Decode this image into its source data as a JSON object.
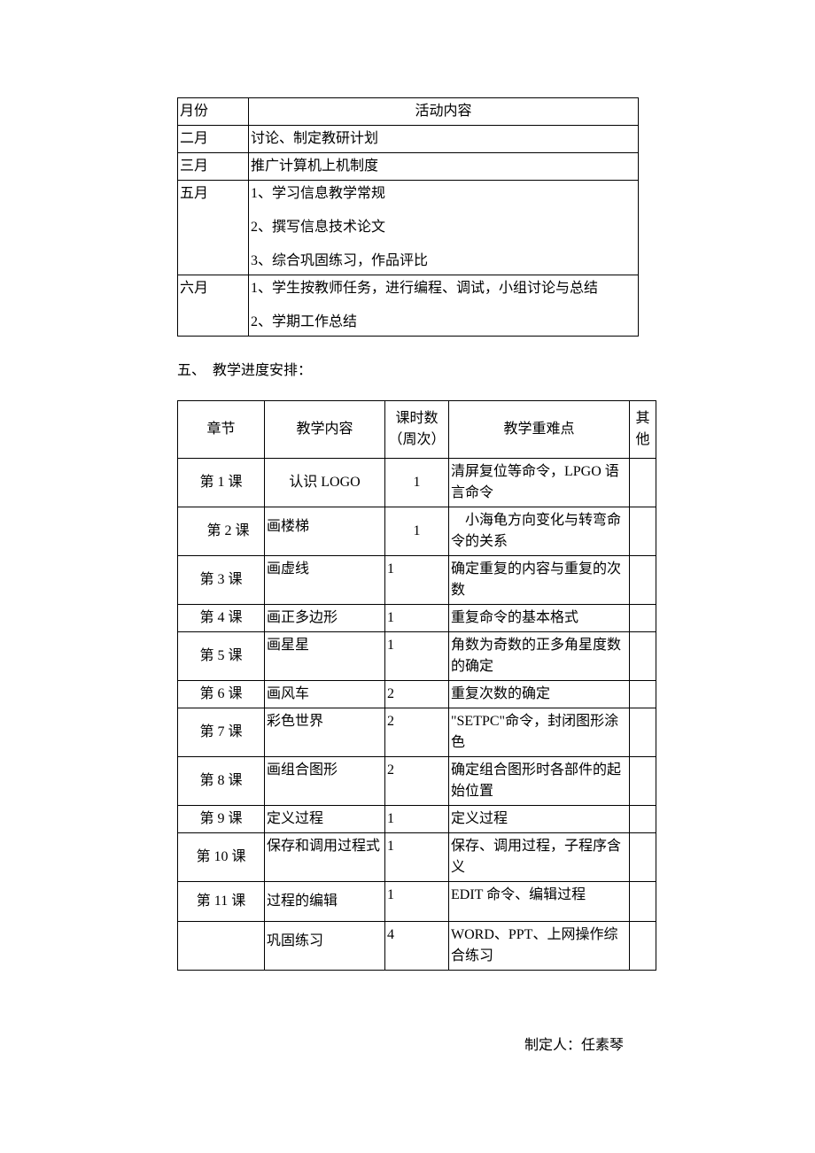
{
  "table1": {
    "headers": {
      "month": "月份",
      "activity": "活动内容"
    },
    "rows": [
      {
        "month": "二月",
        "lines": [
          "讨论、制定教研计划"
        ]
      },
      {
        "month": "三月",
        "lines": [
          "推广计算机上机制度"
        ]
      },
      {
        "month": "五月",
        "lines": [
          "1、学习信息教学常规",
          "2、撰写信息技术论文",
          "3、综合巩固练习，作品评比"
        ]
      },
      {
        "month": "六月",
        "lines": [
          "1、学生按教师任务，进行编程、调试，小组讨论与总结",
          "2、学期工作总结"
        ]
      }
    ]
  },
  "section_heading": "五、　教学进度安排：",
  "table2": {
    "headers": {
      "chapter": "章节",
      "content": "教学内容",
      "hours": "课时数（周次）",
      "focus": "教学重难点",
      "other": "其他"
    },
    "rows": [
      {
        "chapter": "第 1 课",
        "content": "认识 LOGO",
        "hours": "1",
        "focus": "清屏复位等命令，LPGO 语言命令",
        "other": ""
      },
      {
        "chapter": "第 2 课",
        "content": "画楼梯",
        "hours": "1",
        "focus": "　小海龟方向变化与转弯命令的关系",
        "other": ""
      },
      {
        "chapter": "第 3 课",
        "content": "画虚线",
        "hours": "1",
        "focus": "确定重复的内容与重复的次数",
        "other": ""
      },
      {
        "chapter": "第 4 课",
        "content": "画正多边形",
        "hours": "1",
        "focus": "重复命令的基本格式",
        "other": ""
      },
      {
        "chapter": "第 5 课",
        "content": "画星星",
        "hours": "1",
        "focus": "角数为奇数的正多角星度数的确定",
        "other": ""
      },
      {
        "chapter": "第 6 课",
        "content": "画风车",
        "hours": "2",
        "focus": "重复次数的确定",
        "other": ""
      },
      {
        "chapter": "第 7 课",
        "content": "彩色世界",
        "hours": "2",
        "focus": "\"SETPC\"命令，封闭图形涂色",
        "other": ""
      },
      {
        "chapter": "第 8 课",
        "content": "画组合图形",
        "hours": "2",
        "focus": "确定组合图形时各部件的起始位置",
        "other": ""
      },
      {
        "chapter": "第 9 课",
        "content": "定义过程",
        "hours": "1",
        "focus": "定义过程",
        "other": ""
      },
      {
        "chapter": "第 10 课",
        "content": "保存和调用过程式",
        "hours": "1",
        "focus": "保存、调用过程，子程序含义",
        "other": ""
      },
      {
        "chapter": "第 11 课",
        "content": "过程的编辑",
        "hours": "1",
        "focus": "EDIT 命令、编辑过程",
        "other": ""
      },
      {
        "chapter": "",
        "content": "巩固练习",
        "hours": "4",
        "focus": "WORD、PPT、上网操作综合练习",
        "other": ""
      }
    ],
    "row_styles": {
      "0": {
        "chapter_align": "center",
        "content_align": "center",
        "hours_align": "center"
      },
      "1": {
        "chapter_align": "center",
        "chapter_indent": true,
        "content_align": "left",
        "content_pad": true,
        "hours_align": "center"
      },
      "2": {
        "chapter_align": "center",
        "content_align": "left",
        "hours_align": "left"
      },
      "3": {
        "chapter_align": "center",
        "content_align": "left",
        "hours_align": "left"
      },
      "4": {
        "chapter_align": "center",
        "content_align": "left",
        "hours_align": "left"
      },
      "5": {
        "chapter_align": "center",
        "content_align": "left",
        "hours_align": "left"
      },
      "6": {
        "chapter_align": "center",
        "content_align": "left",
        "hours_align": "left"
      },
      "7": {
        "chapter_align": "center",
        "content_align": "left",
        "hours_align": "left"
      },
      "8": {
        "chapter_align": "center",
        "content_align": "left",
        "hours_align": "left"
      },
      "9": {
        "chapter_align": "center",
        "content_align": "left",
        "hours_align": "left"
      },
      "10": {
        "chapter_align": "center",
        "content_align": "left",
        "content_pad": true,
        "hours_align": "left"
      },
      "11": {
        "chapter_align": "center",
        "content_align": "left",
        "content_pad": true,
        "hours_align": "left"
      }
    }
  },
  "author": "制定人：任素琴"
}
